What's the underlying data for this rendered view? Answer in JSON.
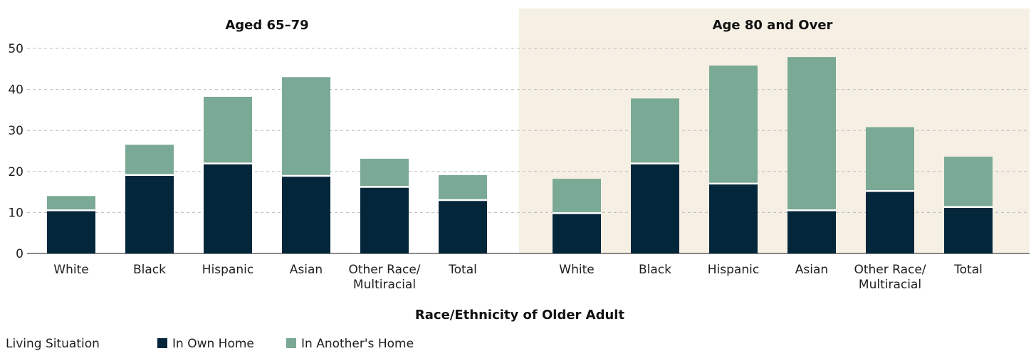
{
  "chart_data": {
    "type": "bar",
    "stacked": true,
    "xlabel": "Race/Ethnicity of Older Adult",
    "ylim": [
      0,
      50
    ],
    "yticks": [
      0,
      10,
      20,
      30,
      40,
      50
    ],
    "grid": true,
    "legend": {
      "title": "Living Situation",
      "placement": "bottom-left",
      "entries": [
        "In Own Home",
        "In Another's Home"
      ]
    },
    "colors": {
      "own_home": "#04263a",
      "another_home": "#7aa995",
      "panel_bg": "#f6f0e4",
      "grid": "#bcbcbc"
    },
    "panels": [
      {
        "title": "Aged 65–79",
        "categories": [
          [
            "White"
          ],
          [
            "Black"
          ],
          [
            "Hispanic"
          ],
          [
            "Asian"
          ],
          [
            "Other Race/",
            "Multiracial"
          ],
          [
            "Total"
          ]
        ],
        "series": [
          {
            "name": "In Own Home",
            "values": [
              10.4,
              19.0,
              21.8,
              18.8,
              16.1,
              12.9
            ]
          },
          {
            "name": "In Another's Home",
            "values": [
              3.6,
              7.5,
              16.4,
              24.2,
              7.0,
              6.2
            ]
          }
        ]
      },
      {
        "title": "Age 80 and Over",
        "categories": [
          [
            "White"
          ],
          [
            "Black"
          ],
          [
            "Hispanic"
          ],
          [
            "Asian"
          ],
          [
            "Other Race/",
            "Multiracial"
          ],
          [
            "Total"
          ]
        ],
        "series": [
          {
            "name": "In Own Home",
            "values": [
              9.7,
              21.8,
              16.9,
              10.4,
              15.1,
              11.2
            ]
          },
          {
            "name": "In Another's Home",
            "values": [
              8.5,
              16.0,
              28.9,
              37.5,
              15.7,
              12.4
            ]
          }
        ]
      }
    ]
  }
}
